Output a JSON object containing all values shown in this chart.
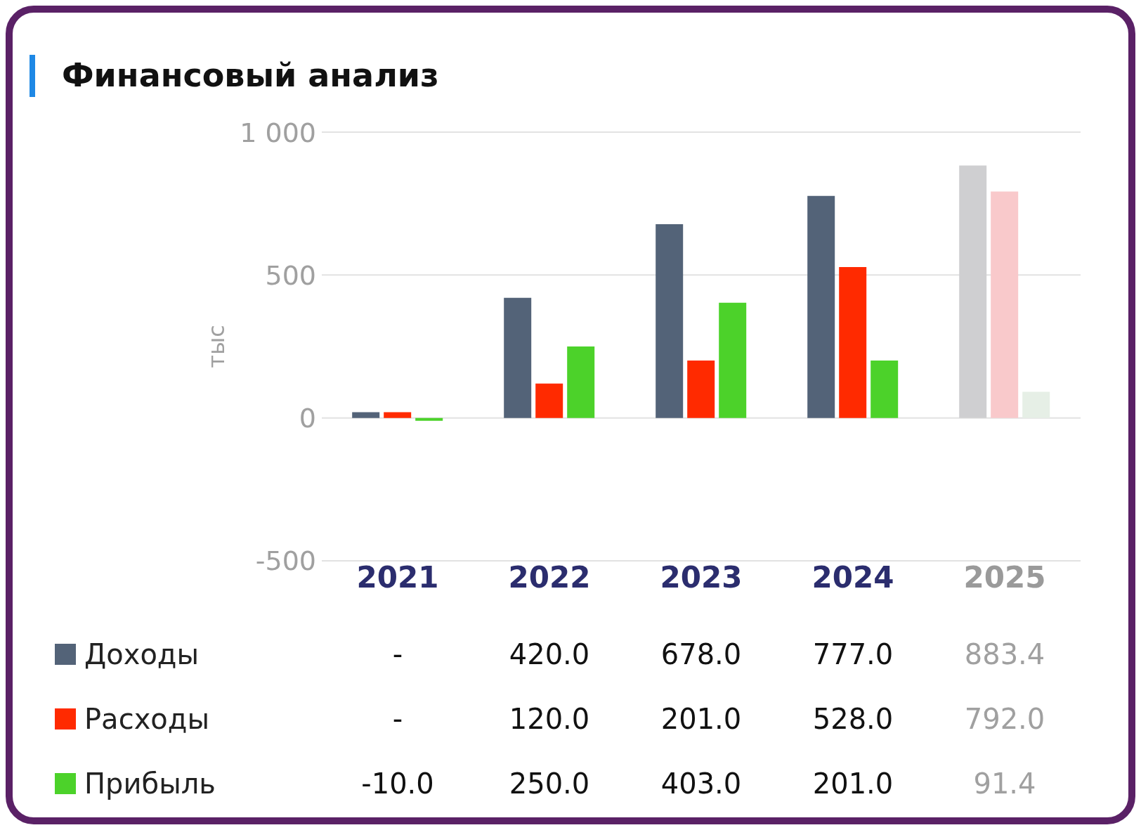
{
  "chart_data": {
    "type": "bar",
    "title": "Финансовый анализ",
    "ylabel": "тыс",
    "categories": [
      "2021",
      "2022",
      "2023",
      "2024",
      "2025"
    ],
    "ylim": [
      -500,
      1000
    ],
    "yticks": [
      -500,
      0,
      500,
      {
        "value": 1000,
        "label": "1 000"
      }
    ],
    "grid": "y",
    "legend": "bottom",
    "series": [
      {
        "name": "Доходы",
        "color": "#536378",
        "colors": [
          "#536378",
          "#536378",
          "#536378",
          "#536378",
          "#cfcfd1"
        ],
        "values": [
          20,
          420,
          678,
          777,
          883.4
        ],
        "value_labels": [
          "-",
          "420.0",
          "678.0",
          "777.0",
          "883.4"
        ]
      },
      {
        "name": "Расходы",
        "color": "#ff2a00",
        "colors": [
          "#ff2a00",
          "#ff2a00",
          "#ff2a00",
          "#ff2a00",
          "#f9c9cb"
        ],
        "values": [
          20,
          120,
          201,
          528,
          792
        ],
        "value_labels": [
          "-",
          "120.0",
          "201.0",
          "528.0",
          "792.0"
        ]
      },
      {
        "name": "Прибыль",
        "color": "#4cd22a",
        "colors": [
          "#4cd22a",
          "#4cd22a",
          "#4cd22a",
          "#4cd22a",
          "#e6efe6"
        ],
        "values": [
          -10,
          250,
          403,
          201,
          91.4
        ],
        "value_labels": [
          "-10.0",
          "250.0",
          "403.0",
          "201.0",
          "91.4"
        ]
      }
    ]
  }
}
